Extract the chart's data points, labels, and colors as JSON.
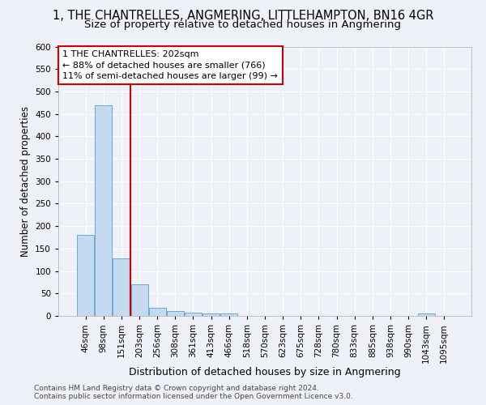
{
  "title": "1, THE CHANTRELLES, ANGMERING, LITTLEHAMPTON, BN16 4GR",
  "subtitle": "Size of property relative to detached houses in Angmering",
  "xlabel": "Distribution of detached houses by size in Angmering",
  "ylabel": "Number of detached properties",
  "bin_labels": [
    "46sqm",
    "98sqm",
    "151sqm",
    "203sqm",
    "256sqm",
    "308sqm",
    "361sqm",
    "413sqm",
    "466sqm",
    "518sqm",
    "570sqm",
    "623sqm",
    "675sqm",
    "728sqm",
    "780sqm",
    "833sqm",
    "885sqm",
    "938sqm",
    "990sqm",
    "1043sqm",
    "1095sqm"
  ],
  "bar_values": [
    180,
    470,
    128,
    70,
    18,
    10,
    8,
    5,
    5,
    0,
    0,
    0,
    0,
    0,
    0,
    0,
    0,
    0,
    0,
    5,
    0
  ],
  "bar_color": "#c5d9f0",
  "bar_edge_color": "#6aaad4",
  "red_line_index": 3,
  "annotation_title": "1 THE CHANTRELLES: 202sqm",
  "annotation_line1": "← 88% of detached houses are smaller (766)",
  "annotation_line2": "11% of semi-detached houses are larger (99) →",
  "annotation_box_color": "#ffffff",
  "annotation_border_color": "#cc0000",
  "footer_line1": "Contains HM Land Registry data © Crown copyright and database right 2024.",
  "footer_line2": "Contains public sector information licensed under the Open Government Licence v3.0.",
  "ylim": [
    0,
    600
  ],
  "yticks": [
    0,
    50,
    100,
    150,
    200,
    250,
    300,
    350,
    400,
    450,
    500,
    550,
    600
  ],
  "background_color": "#eef2f8",
  "grid_color": "#ffffff",
  "title_fontsize": 10.5,
  "subtitle_fontsize": 9.5,
  "ylabel_fontsize": 8.5,
  "xlabel_fontsize": 9,
  "tick_fontsize": 7.5,
  "footer_fontsize": 6.5
}
